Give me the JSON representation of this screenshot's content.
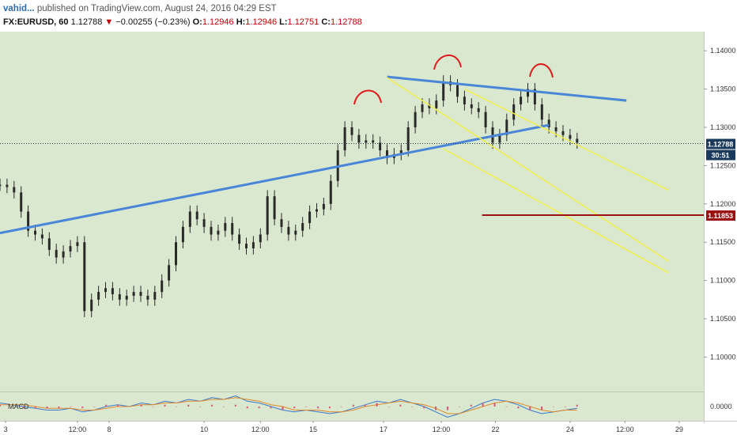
{
  "header": {
    "author": "vahid...",
    "published": "published on TradingView.com, August 24, 2016 04:29 EST",
    "symbol": "FX:EURUSD, 60",
    "last": "1.12788",
    "arrow": "▼",
    "change": "−0.00255 (−0.23%)",
    "o_label": "O:",
    "o_value": "1.12946",
    "h_label": "H:",
    "h_value": "1.12946",
    "l_label": "L:",
    "l_value": "1.12751",
    "c_label": "C:",
    "c_value": "1.12788"
  },
  "colors": {
    "plot_bg": "#d9e8ce",
    "candle": "#2a2a2a",
    "trendline": "#4a86d8",
    "channel": "#f2ef4a",
    "level": "#9b1010",
    "arc": "#e01a1a",
    "macd": "#3a78d0",
    "signal": "#e08b2a"
  },
  "chart_data": {
    "type": "candlestick",
    "symbol": "FX:EURUSD",
    "interval": "60",
    "ylim": [
      1.0955,
      1.1425
    ],
    "yticks": [
      "1.14000",
      "1.13500",
      "1.13000",
      "1.12500",
      "1.12000",
      "1.11500",
      "1.11000",
      "1.10500",
      "1.10000"
    ],
    "xticks": [
      "3",
      "12:00",
      "8",
      "10",
      "12:00",
      "15",
      "17",
      "12:00",
      "22",
      "24",
      "12:00",
      "29"
    ],
    "price_badges": [
      {
        "text": "1.12788",
        "bg": "#1a3a5c"
      },
      {
        "text": "30:51",
        "bg": "#1a3a5c"
      },
      {
        "text": "1.11853",
        "bg": "#9b1010"
      }
    ],
    "series": [
      {
        "name": "price",
        "values": [
          1.1225,
          1.1222,
          1.1215,
          1.119,
          1.1165,
          1.116,
          1.1155,
          1.114,
          1.113,
          1.1138,
          1.1145,
          1.115,
          1.106,
          1.1075,
          1.1085,
          1.109,
          1.1082,
          1.1075,
          1.108,
          1.1085,
          1.108,
          1.1075,
          1.1085,
          1.11,
          1.112,
          1.115,
          1.117,
          1.119,
          1.118,
          1.117,
          1.116,
          1.1165,
          1.1175,
          1.116,
          1.1148,
          1.1142,
          1.115,
          1.116,
          1.121,
          1.118,
          1.117,
          1.116,
          1.1165,
          1.1175,
          1.119,
          1.1193,
          1.12,
          1.123,
          1.127,
          1.13,
          1.129,
          1.128,
          1.1283,
          1.128,
          1.127,
          1.126,
          1.1265,
          1.127,
          1.13,
          1.132,
          1.133,
          1.1325,
          1.1335,
          1.136,
          1.1355,
          1.134,
          1.133,
          1.1325,
          1.132,
          1.13,
          1.128,
          1.129,
          1.131,
          1.133,
          1.134,
          1.135,
          1.133,
          1.131,
          1.13,
          1.1295,
          1.129,
          1.1285,
          1.128
        ]
      },
      {
        "name": "MACD",
        "values": [
          0.0002,
          0.0001,
          0.0,
          -0.0001,
          -0.0002,
          -0.0002,
          -0.0001,
          -0.0003,
          -0.0002,
          0.0,
          0.0001,
          0.0,
          0.0002,
          0.0001,
          0.0003,
          0.0002,
          0.0004,
          0.0003,
          0.0005,
          0.0004,
          0.0006,
          0.0003,
          0.0002,
          0.0,
          -0.0002,
          -0.0003,
          -0.0002,
          -0.0003,
          -0.0004,
          -0.0003,
          -0.0001,
          0.0001,
          0.0003,
          0.0002,
          0.0004,
          0.0002,
          0.0,
          -0.0003,
          -0.0006,
          -0.0004,
          -0.0001,
          0.0002,
          0.0004,
          0.0003,
          0.0001,
          -0.0002,
          -0.0004,
          -0.0003,
          -0.0002,
          -0.0001
        ]
      },
      {
        "name": "signal",
        "values": [
          0.0001,
          0.0001,
          0.0001,
          0.0,
          -0.0001,
          -0.0001,
          -0.0001,
          -0.0002,
          -0.0002,
          -0.0001,
          0.0,
          0.0,
          0.0001,
          0.0001,
          0.0002,
          0.0002,
          0.0003,
          0.0003,
          0.0004,
          0.0004,
          0.0005,
          0.0004,
          0.0003,
          0.0001,
          0.0,
          -0.0002,
          -0.0002,
          -0.0002,
          -0.0003,
          -0.0003,
          -0.0002,
          0.0,
          0.0001,
          0.0002,
          0.0003,
          0.0002,
          0.0001,
          -0.0001,
          -0.0004,
          -0.0004,
          -0.0002,
          0.0,
          0.0002,
          0.0003,
          0.0002,
          0.0,
          -0.0002,
          -0.0003,
          -0.0002,
          -0.0002
        ]
      }
    ],
    "macd_ylim": [
      -0.0008,
      0.0008
    ],
    "macd_label": "MACD",
    "macd_tick": "0.0000",
    "annotations": {
      "trendline_lower": [
        [
          0,
          1.1162
        ],
        [
          0.78,
          1.1303
        ]
      ],
      "trendline_upper": [
        [
          0.55,
          1.1366
        ],
        [
          0.89,
          1.1335
        ]
      ],
      "channel": [
        [
          [
            0.55,
            1.1365
          ],
          [
            0.95,
            1.1125
          ]
        ],
        [
          [
            0.63,
            1.1272
          ],
          [
            0.95,
            1.111
          ]
        ],
        [
          [
            0.66,
            1.135
          ],
          [
            0.95,
            1.1218
          ]
        ]
      ],
      "level": 1.11853,
      "last_price_line": 1.12788
    }
  }
}
